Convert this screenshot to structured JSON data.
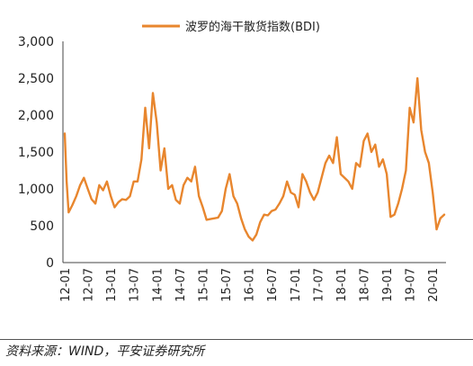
{
  "chart_data": {
    "type": "line",
    "series": [
      {
        "name": "波罗的海干散货指数(BDI)",
        "color": "#E8862E",
        "points": [
          [
            "12-01",
            1750
          ],
          [
            "12-01",
            1100
          ],
          [
            "12-02",
            680
          ],
          [
            "12-03",
            780
          ],
          [
            "12-04",
            900
          ],
          [
            "12-05",
            1050
          ],
          [
            "12-06",
            1150
          ],
          [
            "12-07",
            1000
          ],
          [
            "12-08",
            860
          ],
          [
            "12-09",
            800
          ],
          [
            "12-10",
            1050
          ],
          [
            "12-11",
            980
          ],
          [
            "12-12",
            1100
          ],
          [
            "13-01",
            900
          ],
          [
            "13-02",
            750
          ],
          [
            "13-03",
            820
          ],
          [
            "13-04",
            860
          ],
          [
            "13-05",
            850
          ],
          [
            "13-06",
            900
          ],
          [
            "13-07",
            1100
          ],
          [
            "13-08",
            1100
          ],
          [
            "13-09",
            1400
          ],
          [
            "13-10",
            2100
          ],
          [
            "13-11",
            1550
          ],
          [
            "13-12",
            2300
          ],
          [
            "14-01",
            1900
          ],
          [
            "14-02",
            1250
          ],
          [
            "14-03",
            1550
          ],
          [
            "14-04",
            1000
          ],
          [
            "14-05",
            1050
          ],
          [
            "14-06",
            850
          ],
          [
            "14-07",
            800
          ],
          [
            "14-08",
            1050
          ],
          [
            "14-09",
            1150
          ],
          [
            "14-10",
            1100
          ],
          [
            "14-11",
            1300
          ],
          [
            "14-12",
            900
          ],
          [
            "15-01",
            750
          ],
          [
            "15-02",
            580
          ],
          [
            "15-03",
            590
          ],
          [
            "15-04",
            600
          ],
          [
            "15-05",
            610
          ],
          [
            "15-06",
            700
          ],
          [
            "15-07",
            1000
          ],
          [
            "15-08",
            1200
          ],
          [
            "15-09",
            900
          ],
          [
            "15-10",
            800
          ],
          [
            "15-11",
            600
          ],
          [
            "15-12",
            450
          ],
          [
            "16-01",
            350
          ],
          [
            "16-02",
            300
          ],
          [
            "16-03",
            380
          ],
          [
            "16-04",
            550
          ],
          [
            "16-05",
            650
          ],
          [
            "16-06",
            640
          ],
          [
            "16-07",
            700
          ],
          [
            "16-08",
            720
          ],
          [
            "16-09",
            800
          ],
          [
            "16-10",
            900
          ],
          [
            "16-11",
            1100
          ],
          [
            "16-12",
            950
          ],
          [
            "17-01",
            920
          ],
          [
            "17-02",
            750
          ],
          [
            "17-03",
            1200
          ],
          [
            "17-04",
            1100
          ],
          [
            "17-05",
            950
          ],
          [
            "17-06",
            850
          ],
          [
            "17-07",
            950
          ],
          [
            "17-08",
            1150
          ],
          [
            "17-09",
            1350
          ],
          [
            "17-10",
            1450
          ],
          [
            "17-11",
            1350
          ],
          [
            "17-12",
            1700
          ],
          [
            "18-01",
            1200
          ],
          [
            "18-02",
            1150
          ],
          [
            "18-03",
            1100
          ],
          [
            "18-04",
            1000
          ],
          [
            "18-05",
            1350
          ],
          [
            "18-06",
            1300
          ],
          [
            "18-07",
            1650
          ],
          [
            "18-08",
            1750
          ],
          [
            "18-09",
            1500
          ],
          [
            "18-10",
            1600
          ],
          [
            "18-11",
            1300
          ],
          [
            "18-12",
            1400
          ],
          [
            "19-01",
            1200
          ],
          [
            "19-02",
            620
          ],
          [
            "19-03",
            650
          ],
          [
            "19-04",
            800
          ],
          [
            "19-05",
            1000
          ],
          [
            "19-06",
            1250
          ],
          [
            "19-07",
            2100
          ],
          [
            "19-08",
            1900
          ],
          [
            "19-09",
            2500
          ],
          [
            "19-10",
            1800
          ],
          [
            "19-11",
            1500
          ],
          [
            "19-12",
            1350
          ],
          [
            "20-01",
            950
          ],
          [
            "20-02",
            450
          ],
          [
            "20-03",
            600
          ],
          [
            "20-04",
            650
          ]
        ]
      }
    ],
    "xlabels": [
      "12-01",
      "12-07",
      "13-01",
      "13-07",
      "14-01",
      "14-07",
      "15-01",
      "15-07",
      "16-01",
      "16-07",
      "17-01",
      "17-07",
      "18-01",
      "18-07",
      "19-01",
      "19-07",
      "20-01"
    ],
    "yticks": [
      "3,000",
      "2,500",
      "2,000",
      "1,500",
      "1,000",
      "500",
      "0"
    ],
    "ytick_values": [
      3000,
      2500,
      2000,
      1500,
      1000,
      500,
      0
    ],
    "ylim": [
      0,
      3000
    ],
    "x_rotation": "vertical",
    "grid": false,
    "legend_position": "top-center"
  },
  "source": "资料来源：WIND，平安证券研究所"
}
